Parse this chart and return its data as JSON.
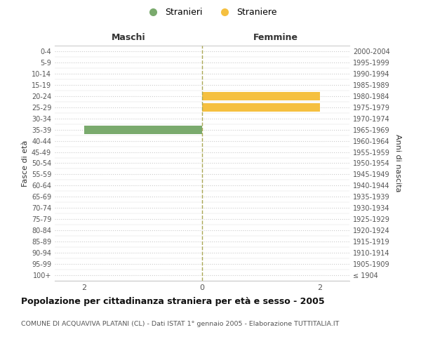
{
  "age_groups": [
    "0-4",
    "5-9",
    "10-14",
    "15-19",
    "20-24",
    "25-29",
    "30-34",
    "35-39",
    "40-44",
    "45-49",
    "50-54",
    "55-59",
    "60-64",
    "65-69",
    "70-74",
    "75-79",
    "80-84",
    "85-89",
    "90-94",
    "95-99",
    "100+"
  ],
  "birth_years": [
    "2000-2004",
    "1995-1999",
    "1990-1994",
    "1985-1989",
    "1980-1984",
    "1975-1979",
    "1970-1974",
    "1965-1969",
    "1960-1964",
    "1955-1959",
    "1950-1954",
    "1945-1949",
    "1940-1944",
    "1935-1939",
    "1930-1934",
    "1925-1929",
    "1920-1924",
    "1915-1919",
    "1910-1914",
    "1905-1909",
    "≤ 1904"
  ],
  "males": [
    0,
    0,
    0,
    0,
    0,
    0,
    0,
    2,
    0,
    0,
    0,
    0,
    0,
    0,
    0,
    0,
    0,
    0,
    0,
    0,
    0
  ],
  "females": [
    0,
    0,
    0,
    0,
    2,
    2,
    0,
    0,
    0,
    0,
    0,
    0,
    0,
    0,
    0,
    0,
    0,
    0,
    0,
    0,
    0
  ],
  "male_color": "#7aaa6d",
  "female_color": "#f5c040",
  "background_color": "#ffffff",
  "grid_color": "#cccccc",
  "title": "Popolazione per cittadinanza straniera per età e sesso - 2005",
  "subtitle": "COMUNE DI ACQUAVIVA PLATANI (CL) - Dati ISTAT 1° gennaio 2005 - Elaborazione TUTTITALIA.IT",
  "legend_stranieri": "Stranieri",
  "legend_straniere": "Straniere",
  "header_left": "Maschi",
  "header_right": "Femmine",
  "ylabel_left": "Fasce di età",
  "ylabel_right": "Anni di nascita",
  "xlim": 2.5,
  "xticks": [
    -2,
    0,
    2
  ],
  "xticklabels": [
    "2",
    "0",
    "2"
  ]
}
